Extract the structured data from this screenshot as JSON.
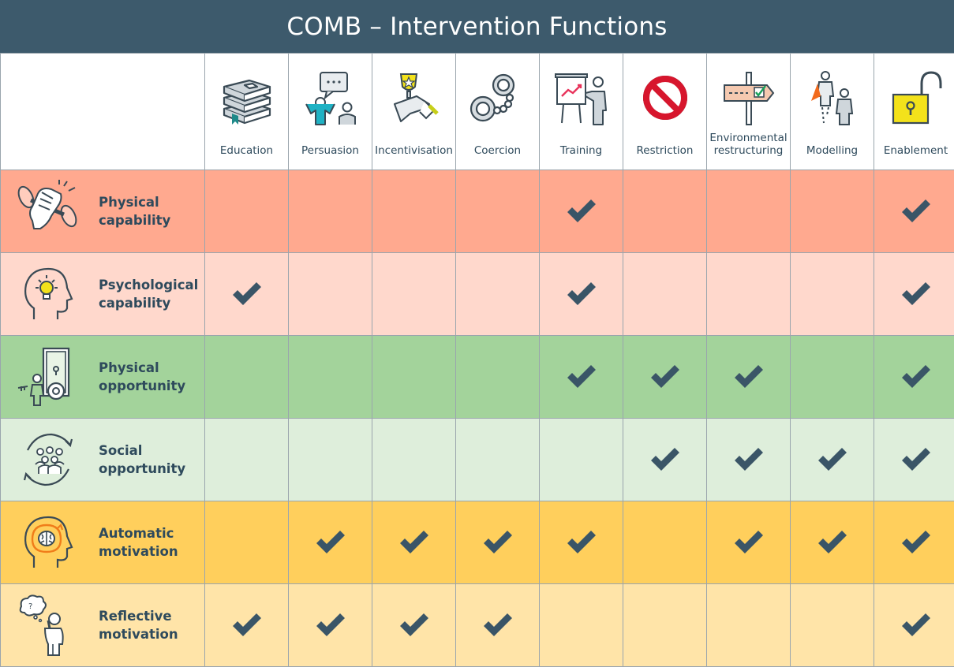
{
  "title": "COMB – Intervention Functions",
  "colors": {
    "header": "#3d5a6c",
    "text": "#2e4a5c",
    "check": "#3a5567"
  },
  "functions": [
    {
      "label_lines": [
        "Education"
      ],
      "icon": "books-icon"
    },
    {
      "label_lines": [
        "Persuasion"
      ],
      "icon": "speech-bubble-people-icon"
    },
    {
      "label_lines": [
        "Incentivisation"
      ],
      "icon": "trophy-hand-icon"
    },
    {
      "label_lines": [
        "Coercion"
      ],
      "icon": "handcuffs-icon"
    },
    {
      "label_lines": [
        "Training"
      ],
      "icon": "presentation-board-icon"
    },
    {
      "label_lines": [
        "Restriction"
      ],
      "icon": "prohibited-sign-icon"
    },
    {
      "label_lines": [
        "Environmental",
        "restructuring"
      ],
      "icon": "signpost-icon"
    },
    {
      "label_lines": [
        "Modelling"
      ],
      "icon": "role-model-icon"
    },
    {
      "label_lines": [
        "Enablement"
      ],
      "icon": "open-padlock-icon"
    }
  ],
  "rows": [
    {
      "label_lines": [
        "Physical",
        "capability"
      ],
      "icon": "dumbbell-fist-icon",
      "color": "#ffa98f",
      "checks": [
        false,
        false,
        false,
        false,
        true,
        false,
        false,
        false,
        true
      ]
    },
    {
      "label_lines": [
        "Psychological",
        "capability"
      ],
      "icon": "head-lightbulb-icon",
      "color": "#ffd8cc",
      "checks": [
        true,
        false,
        false,
        false,
        true,
        false,
        false,
        false,
        true
      ]
    },
    {
      "label_lines": [
        "Physical",
        "opportunity"
      ],
      "icon": "door-key-icon",
      "color": "#a3d39b",
      "checks": [
        false,
        false,
        false,
        false,
        true,
        true,
        true,
        false,
        true
      ]
    },
    {
      "label_lines": [
        "Social",
        "opportunity"
      ],
      "icon": "people-cycle-icon",
      "color": "#deeedb",
      "checks": [
        false,
        false,
        false,
        false,
        false,
        true,
        true,
        true,
        true
      ]
    },
    {
      "label_lines": [
        "Automatic",
        "motivation"
      ],
      "icon": "head-brain-icon",
      "color": "#ffcf5c",
      "checks": [
        false,
        true,
        true,
        true,
        true,
        false,
        true,
        true,
        true
      ]
    },
    {
      "label_lines": [
        "Reflective",
        "motivation"
      ],
      "icon": "thinking-person-icon",
      "color": "#ffe4a8",
      "checks": [
        true,
        true,
        true,
        true,
        false,
        false,
        false,
        false,
        true
      ]
    }
  ]
}
